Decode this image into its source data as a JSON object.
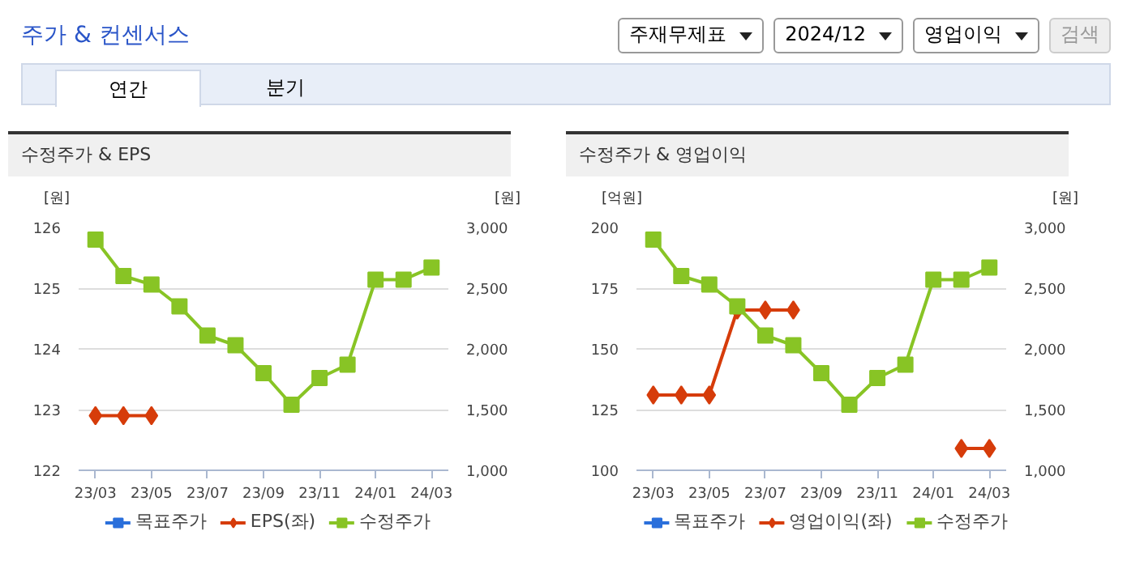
{
  "chart_data": [
    {
      "type": "line",
      "title": "수정주가 & EPS",
      "ylabel": "[원]",
      "y2label": "[원]",
      "annotations": [
        "주가 & 컨센서스",
        "주재무제표",
        "2024/12",
        "영업이익",
        "검색",
        "연간",
        "분기"
      ],
      "categories": [
        "23/03",
        null,
        "23/05",
        null,
        "23/07",
        null,
        "23/09",
        null,
        "23/11",
        null,
        "24/01",
        null,
        "24/03"
      ],
      "series": [
        {
          "name": "목표주가",
          "marker": "square",
          "color": "#2a6fdb",
          "values": [
            null,
            null,
            null,
            null,
            null,
            null,
            null,
            null,
            null,
            null,
            null,
            null,
            null
          ]
        },
        {
          "name": "EPS(좌)",
          "marker": "diamond",
          "color": "#d63c0a",
          "values": [
            122.9,
            122.9,
            122.9,
            null,
            null,
            null,
            null,
            null,
            null,
            null,
            null,
            null,
            null
          ]
        },
        {
          "name": "수정주가",
          "marker": "square",
          "axis": "y2",
          "color": "#88c425",
          "values": [
            2900,
            2600,
            2530,
            2350,
            2110,
            2030,
            1800,
            1540,
            1760,
            1870,
            2570,
            2570,
            2670
          ]
        }
      ],
      "ylim": [
        122,
        126
      ],
      "yticks": [
        122,
        123,
        124,
        125,
        126
      ],
      "y2lim": [
        1000,
        3000
      ],
      "y2ticks": [
        {
          "value": 1000,
          "label": "1,000"
        },
        {
          "value": 1500,
          "label": "1,500"
        },
        {
          "value": 2000,
          "label": "2,000"
        },
        {
          "value": 2500,
          "label": "2,500"
        },
        {
          "value": 3000,
          "label": "3,000"
        }
      ],
      "grid": "y",
      "legend": "bottom"
    },
    {
      "type": "line",
      "title": "수정주가 & 영업이익",
      "ylabel": "[억원]",
      "y2label": "[원]",
      "categories": [
        "23/03",
        null,
        "23/05",
        null,
        "23/07",
        null,
        "23/09",
        null,
        "23/11",
        null,
        "24/01",
        null,
        "24/03"
      ],
      "series": [
        {
          "name": "목표주가",
          "marker": "square",
          "color": "#2a6fdb",
          "values": [
            null,
            null,
            null,
            null,
            null,
            null,
            null,
            null,
            null,
            null,
            null,
            null,
            null
          ]
        },
        {
          "name": "영업이익(좌)",
          "marker": "diamond",
          "color": "#d63c0a",
          "values": [
            131,
            131,
            131,
            166,
            166,
            166,
            null,
            null,
            null,
            null,
            null,
            109,
            109
          ]
        },
        {
          "name": "수정주가",
          "marker": "square",
          "axis": "y2",
          "color": "#88c425",
          "values": [
            2900,
            2600,
            2530,
            2350,
            2110,
            2030,
            1800,
            1540,
            1760,
            1870,
            2570,
            2570,
            2670
          ]
        }
      ],
      "ylim": [
        100,
        200
      ],
      "yticks": [
        100,
        125,
        150,
        175,
        200
      ],
      "y2lim": [
        1000,
        3000
      ],
      "y2ticks": [
        {
          "value": 1000,
          "label": "1,000"
        },
        {
          "value": 1500,
          "label": "1,500"
        },
        {
          "value": 2000,
          "label": "2,000"
        },
        {
          "value": 2500,
          "label": "2,500"
        },
        {
          "value": 3000,
          "label": "3,000"
        }
      ],
      "grid": "y",
      "legend": "bottom"
    }
  ]
}
